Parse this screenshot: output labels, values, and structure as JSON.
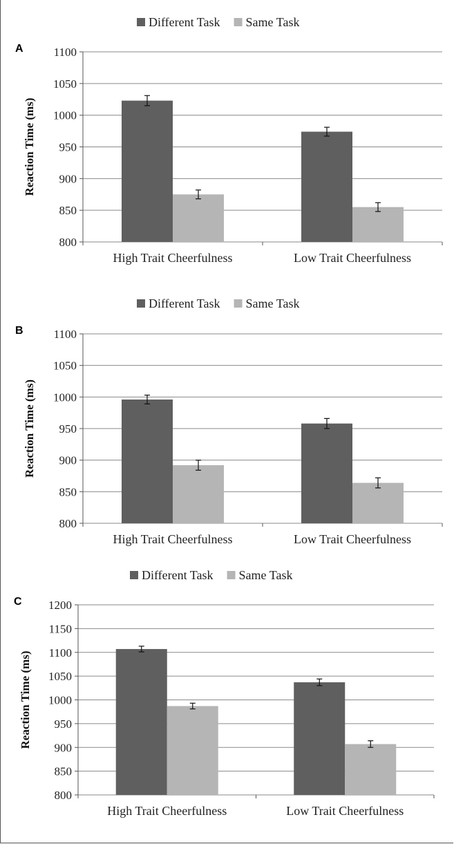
{
  "colors": {
    "different": "#5f5f5f",
    "same": "#b5b5b5",
    "grid": "#8a8a8a",
    "axis": "#555555"
  },
  "chart_data": [
    {
      "panel": "A",
      "type": "bar",
      "categories": [
        "High Trait Cheerfulness",
        "Low Trait Cheerfulness"
      ],
      "series": [
        {
          "name": "Different Task",
          "values": [
            1023,
            974
          ],
          "errors": [
            8,
            7
          ]
        },
        {
          "name": "Same Task",
          "values": [
            875,
            855
          ],
          "errors": [
            7,
            7
          ]
        }
      ],
      "ylabel": "Reaction Time (ms)",
      "ylim": [
        800,
        1100
      ],
      "yticks": [
        800,
        850,
        900,
        950,
        1000,
        1050,
        1100
      ],
      "grid": true,
      "legend": "top"
    },
    {
      "panel": "B",
      "type": "bar",
      "categories": [
        "High Trait Cheerfulness",
        "Low Trait Cheerfulness"
      ],
      "series": [
        {
          "name": "Different Task",
          "values": [
            996,
            958
          ],
          "errors": [
            7,
            8
          ]
        },
        {
          "name": "Same Task",
          "values": [
            892,
            864
          ],
          "errors": [
            8,
            8
          ]
        }
      ],
      "ylabel": "Reaction Time (ms)",
      "ylim": [
        800,
        1100
      ],
      "yticks": [
        800,
        850,
        900,
        950,
        1000,
        1050,
        1100
      ],
      "grid": true,
      "legend": "top"
    },
    {
      "panel": "C",
      "type": "bar",
      "categories": [
        "High Trait Cheerfulness",
        "Low Trait Cheerfulness"
      ],
      "series": [
        {
          "name": "Different Task",
          "values": [
            1107,
            1037
          ],
          "errors": [
            6,
            7
          ]
        },
        {
          "name": "Same Task",
          "values": [
            987,
            907
          ],
          "errors": [
            6,
            7
          ]
        }
      ],
      "ylabel": "Reaction Time (ms)",
      "ylim": [
        800,
        1200
      ],
      "yticks": [
        800,
        850,
        900,
        950,
        1000,
        1050,
        1100,
        1150,
        1200
      ],
      "grid": true,
      "legend": "top"
    }
  ]
}
